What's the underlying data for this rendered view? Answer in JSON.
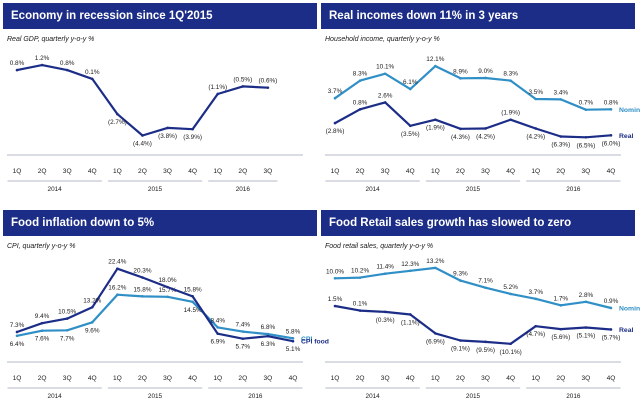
{
  "colors": {
    "header_bg": "#1c2d87",
    "dark_series": "#1c2d87",
    "light_series": "#2f8fc6",
    "axis": "#9aa3b5",
    "text": "#1a1a1a"
  },
  "chart_data": [
    {
      "type": "line",
      "title": "Economy in recession since 1Q'2015",
      "subtitle": "Real GDP, quarterly y-o-y %",
      "quarters": [
        "1Q",
        "2Q",
        "3Q",
        "4Q",
        "1Q",
        "2Q",
        "3Q",
        "4Q",
        "1Q",
        "2Q",
        "3Q"
      ],
      "years": [
        "2014",
        "2015",
        "2016"
      ],
      "ylim": [
        -5.0,
        2.0
      ],
      "series": [
        {
          "color": "dark",
          "values": [
            0.8,
            1.2,
            0.8,
            0.1,
            -2.7,
            -4.4,
            -3.8,
            -3.9,
            -1.1,
            -0.5,
            -0.6
          ],
          "labels": [
            "0.8%",
            "1.2%",
            "0.8%",
            "0.1%",
            "(2.7%)",
            "(4.4%)",
            "(3.8%)",
            "(3.9%)",
            "(1.1%)",
            "(0.5%)",
            "(0.6%)"
          ],
          "label_pos": [
            "above",
            "above",
            "above",
            "above",
            "below",
            "below",
            "below",
            "below",
            "above",
            "above",
            "above"
          ]
        }
      ]
    },
    {
      "type": "line",
      "title": "Real incomes down 11% in 3 years",
      "subtitle": "Household income, quarterly y-o-y %",
      "quarters": [
        "1Q",
        "2Q",
        "3Q",
        "4Q",
        "1Q",
        "2Q",
        "3Q",
        "4Q",
        "1Q",
        "2Q",
        "3Q",
        "4Q"
      ],
      "years": [
        "2014",
        "2015",
        "2016"
      ],
      "ylim": [
        -8.0,
        15.0
      ],
      "series": [
        {
          "name": "Nominal",
          "color": "light",
          "values": [
            3.7,
            8.3,
            10.1,
            6.1,
            12.1,
            8.9,
            9.0,
            8.3,
            3.5,
            3.4,
            0.7,
            0.8
          ],
          "labels": [
            "3.7%",
            "8.3%",
            "10.1%",
            "6.1%",
            "12.1%",
            "8.9%",
            "9.0%",
            "8.3%",
            "3.5%",
            "3.4%",
            "0.7%",
            "0.8%"
          ],
          "label_pos": [
            "above",
            "above",
            "above",
            "above",
            "above",
            "above",
            "above",
            "above",
            "above",
            "above",
            "above",
            "above"
          ]
        },
        {
          "name": "Real",
          "color": "dark",
          "values": [
            -2.8,
            0.8,
            2.6,
            -3.5,
            -1.9,
            -4.3,
            -4.2,
            -1.9,
            -4.2,
            -6.3,
            -6.5,
            -6.0
          ],
          "labels": [
            "(2.8%)",
            "0.8%",
            "2.6%",
            "(3.5%)",
            "(1.9%)",
            "(4.3%)",
            "(4.2%)",
            "(1.9%)",
            "(4.2%)",
            "(6.3%)",
            "(6.5%)",
            "(6.0%)"
          ],
          "label_pos": [
            "below",
            "above",
            "above",
            "below",
            "below",
            "below",
            "below",
            "above",
            "below",
            "below",
            "below",
            "below"
          ]
        }
      ]
    },
    {
      "type": "line",
      "title": "Food inflation down to 5%",
      "subtitle": "CPI, quarterly y-o-y %",
      "quarters": [
        "1Q",
        "2Q",
        "3Q",
        "4Q",
        "1Q",
        "2Q",
        "3Q",
        "4Q",
        "1Q",
        "2Q",
        "3Q",
        "4Q"
      ],
      "years": [
        "2014",
        "2015",
        "2016"
      ],
      "ylim": [
        3.0,
        24.0
      ],
      "series": [
        {
          "name": "CPI",
          "color": "light",
          "values": [
            6.4,
            7.6,
            7.7,
            9.6,
            16.2,
            15.8,
            15.7,
            14.5,
            8.4,
            7.4,
            6.8,
            5.8
          ],
          "labels": [
            "6.4%",
            "7.6%",
            "7.7%",
            "9.6%",
            "16.2%",
            "15.8%",
            "15.7%",
            "14.5%",
            "8.4%",
            "7.4%",
            "6.8%",
            "5.8%"
          ],
          "label_pos": [
            "below",
            "below",
            "below",
            "below",
            "above",
            "above",
            "above",
            "below",
            "above",
            "above",
            "above",
            "above"
          ]
        },
        {
          "name": "CPI food",
          "color": "dark",
          "values": [
            7.3,
            9.4,
            10.5,
            13.2,
            22.4,
            20.3,
            18.0,
            15.8,
            6.9,
            5.7,
            6.3,
            5.1
          ],
          "labels": [
            "7.3%",
            "9.4%",
            "10.5%",
            "13.2%",
            "22.4%",
            "20.3%",
            "18.0%",
            "15.8%",
            "6.9%",
            "5.7%",
            "6.3%",
            "5.1%"
          ],
          "label_pos": [
            "above",
            "above",
            "above",
            "above",
            "above",
            "above",
            "above",
            "above",
            "below",
            "below",
            "below",
            "below"
          ]
        }
      ]
    },
    {
      "type": "line",
      "title": "Food Retail sales growth has slowed to zero",
      "subtitle": "Food retail sales, quarterly y-o-y %",
      "quarters": [
        "1Q",
        "2Q",
        "3Q",
        "4Q",
        "1Q",
        "2Q",
        "3Q",
        "4Q",
        "1Q",
        "2Q",
        "3Q",
        "4Q"
      ],
      "years": [
        "2014",
        "2015",
        "2016"
      ],
      "ylim": [
        -12.0,
        15.0
      ],
      "series": [
        {
          "name": "Nominal",
          "color": "light",
          "values": [
            10.0,
            10.2,
            11.4,
            12.3,
            13.2,
            9.3,
            7.1,
            5.2,
            3.7,
            1.7,
            2.8,
            0.9
          ],
          "labels": [
            "10.0%",
            "10.2%",
            "11.4%",
            "12.3%",
            "13.2%",
            "9.3%",
            "7.1%",
            "5.2%",
            "3.7%",
            "1.7%",
            "2.8%",
            "0.9%"
          ],
          "label_pos": [
            "above",
            "above",
            "above",
            "above",
            "above",
            "above",
            "above",
            "above",
            "above",
            "above",
            "above",
            "above"
          ]
        },
        {
          "name": "Real",
          "color": "dark",
          "values": [
            1.5,
            0.1,
            -0.3,
            -1.1,
            -6.9,
            -9.1,
            -9.5,
            -10.1,
            -4.7,
            -5.6,
            -5.1,
            -5.7
          ],
          "labels": [
            "1.5%",
            "0.1%",
            "(0.3%)",
            "(1.1%)",
            "(6.9%)",
            "(9.1%)",
            "(9.5%)",
            "(10.1%)",
            "(4.7%)",
            "(5.6%)",
            "(5.1%)",
            "(5.7%)"
          ],
          "label_pos": [
            "above",
            "above",
            "below",
            "below",
            "below",
            "below",
            "below",
            "below",
            "below",
            "below",
            "below",
            "below"
          ]
        }
      ]
    }
  ]
}
